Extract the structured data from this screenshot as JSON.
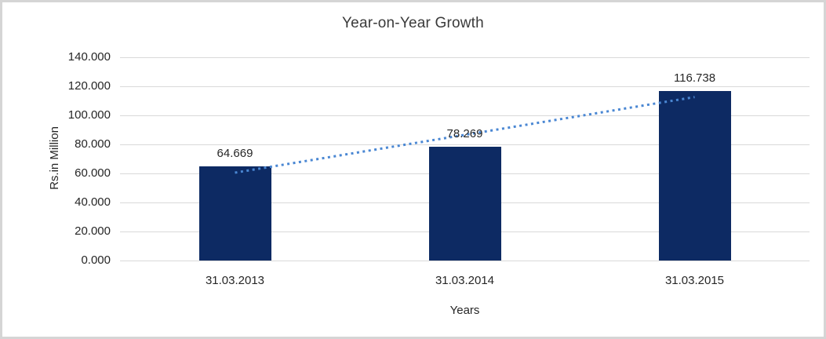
{
  "chart_data": {
    "type": "bar",
    "title": "Year-on-Year Growth",
    "xlabel": "Years",
    "ylabel": "Rs.in Million",
    "categories": [
      "31.03.2013",
      "31.03.2014",
      "31.03.2015"
    ],
    "values": [
      64.669,
      78.269,
      116.738
    ],
    "data_labels": [
      "64.669",
      "78.269",
      "116.738"
    ],
    "ylim": [
      0,
      140
    ],
    "ytick_step": 20,
    "ytick_labels": [
      "0.000",
      "20.000",
      "40.000",
      "60.000",
      "80.000",
      "100.000",
      "120.000",
      "140.000"
    ],
    "grid": true,
    "legend": "none",
    "trendline": {
      "type": "linear",
      "style": "dotted"
    },
    "colors": {
      "bar": "#0d2a63",
      "trendline": "#4a87d3",
      "gridline": "#d9d9d9",
      "text": "#262626",
      "title_text": "#3a3a3a",
      "frame_border": "#d5d5d5",
      "background": "#ffffff"
    }
  }
}
